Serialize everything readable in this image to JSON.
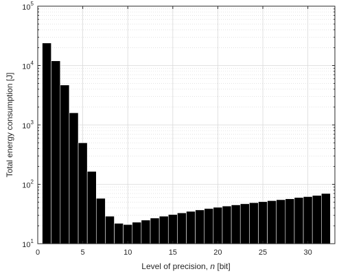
{
  "chart_data": {
    "type": "bar",
    "title": "",
    "xlabel_prefix": "Level of precision, ",
    "xlabel_var": "n",
    "xlabel_suffix": " [bit]",
    "ylabel": "Total energy consumption [J]",
    "xlim": [
      0,
      33
    ],
    "ylim": [
      10,
      100000
    ],
    "yscale": "log",
    "grid": "on",
    "xticks": [
      0,
      5,
      10,
      15,
      20,
      25,
      30
    ],
    "yticks": [
      {
        "value": 10,
        "base": "10",
        "exp": "1"
      },
      {
        "value": 100,
        "base": "10",
        "exp": "2"
      },
      {
        "value": 1000,
        "base": "10",
        "exp": "3"
      },
      {
        "value": 10000,
        "base": "10",
        "exp": "4"
      },
      {
        "value": 100000,
        "base": "10",
        "exp": "5"
      }
    ],
    "categories": [
      1,
      2,
      3,
      4,
      5,
      6,
      7,
      8,
      9,
      10,
      11,
      12,
      13,
      14,
      15,
      16,
      17,
      18,
      19,
      20,
      21,
      22,
      23,
      24,
      25,
      26,
      27,
      28,
      29,
      30,
      31,
      32
    ],
    "values": [
      24000,
      12000,
      4700,
      1600,
      500,
      165,
      58,
      29,
      22,
      21,
      23,
      25,
      27,
      29,
      31,
      33,
      35,
      37,
      39,
      41,
      43,
      45,
      47,
      49,
      51,
      53,
      55,
      57,
      60,
      62,
      65,
      70
    ],
    "bar_color": "#000000"
  }
}
